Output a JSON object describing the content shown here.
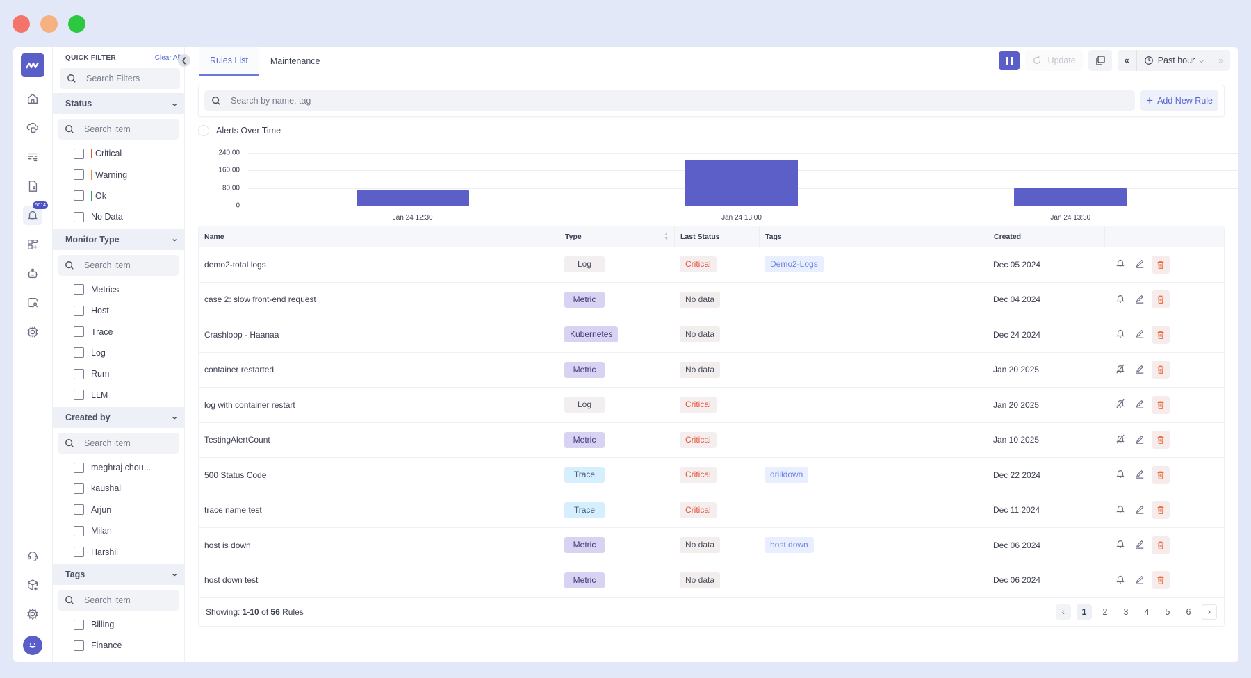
{
  "window": {
    "traffic_lights": [
      {
        "name": "close",
        "color": "#f4736a"
      },
      {
        "name": "minimize",
        "color": "#f5b17f"
      },
      {
        "name": "maximize",
        "color": "#2bc840"
      }
    ]
  },
  "rail": {
    "top_icons": [
      "home-icon",
      "cloud-infra-icon",
      "logs-icon",
      "document-icon",
      "alerts-bell-icon",
      "dashboard-add-icon",
      "bot-icon",
      "user-search-icon",
      "chip-settings-icon"
    ],
    "alerts_badge": "5014",
    "bottom_icons": [
      "headset-support-icon",
      "cube-add-icon",
      "settings-gear-icon",
      "user-avatar"
    ]
  },
  "filters": {
    "title": "QUICK FILTER",
    "clear_all": "Clear All",
    "search_placeholder": "Search Filters",
    "sections": {
      "status": {
        "title": "Status",
        "placeholder": "Search item",
        "items": [
          {
            "label": "Critical",
            "bar": "#e5533b"
          },
          {
            "label": "Warning",
            "bar": "#f08a3a"
          },
          {
            "label": "Ok",
            "bar": "#3aa35a"
          },
          {
            "label": "No Data",
            "bar": ""
          }
        ]
      },
      "monitor_type": {
        "title": "Monitor Type",
        "placeholder": "Search item",
        "items": [
          "Metrics",
          "Host",
          "Trace",
          "Log",
          "Rum",
          "LLM"
        ]
      },
      "created_by": {
        "title": "Created by",
        "placeholder": "Search item",
        "items": [
          "meghraj chou...",
          "kaushal",
          "Arjun",
          "Milan",
          "Harshil"
        ]
      },
      "tags": {
        "title": "Tags",
        "placeholder": "Search item",
        "items": [
          "Billing",
          "Finance"
        ]
      }
    }
  },
  "tabs": [
    {
      "label": "Rules List",
      "active": true
    },
    {
      "label": "Maintenance",
      "active": false
    }
  ],
  "toolbar": {
    "update_label": "Update",
    "time_range": "Past hour"
  },
  "search": {
    "placeholder": "Search by name, tag",
    "add_rule_label": "Add New Rule"
  },
  "chart_section": {
    "title": "Alerts Over Time"
  },
  "chart_data": {
    "type": "bar",
    "title": "Alerts Over Time",
    "categories": [
      "Jan 24 12:30",
      "Jan 24 13:00",
      "Jan 24 13:30"
    ],
    "values": [
      70,
      210,
      78
    ],
    "xlabel": "",
    "ylabel": "",
    "yticks": [
      "0",
      "80.00",
      "160.00",
      "240.00"
    ],
    "ylim": [
      0,
      240
    ],
    "grid": true,
    "color": "#5c5fc7"
  },
  "table": {
    "columns": [
      "Name",
      "Type",
      "Last Status",
      "Tags",
      "Created",
      ""
    ],
    "rows": [
      {
        "name": "demo2-total logs",
        "type": "Log",
        "status": "Critical",
        "tag": "Demo2-Logs",
        "created": "Dec 05 2024",
        "muted": false
      },
      {
        "name": "case 2: slow front-end request",
        "type": "Metric",
        "status": "No data",
        "tag": "",
        "created": "Dec 04 2024",
        "muted": false
      },
      {
        "name": "Crashloop - Haanaa",
        "type": "Kubernetes",
        "status": "No data",
        "tag": "",
        "created": "Dec 24 2024",
        "muted": false
      },
      {
        "name": "container restarted",
        "type": "Metric",
        "status": "No data",
        "tag": "",
        "created": "Jan 20 2025",
        "muted": true
      },
      {
        "name": "log with container restart",
        "type": "Log",
        "status": "Critical",
        "tag": "",
        "created": "Jan 20 2025",
        "muted": true
      },
      {
        "name": "TestingAlertCount",
        "type": "Metric",
        "status": "Critical",
        "tag": "",
        "created": "Jan 10 2025",
        "muted": true
      },
      {
        "name": "500 Status Code",
        "type": "Trace",
        "status": "Critical",
        "tag": "drilldown",
        "created": "Dec 22 2024",
        "muted": false
      },
      {
        "name": "trace name test",
        "type": "Trace",
        "status": "Critical",
        "tag": "",
        "created": "Dec 11 2024",
        "muted": false
      },
      {
        "name": "host is down",
        "type": "Metric",
        "status": "No data",
        "tag": "host down",
        "created": "Dec 06 2024",
        "muted": false
      },
      {
        "name": "host down test",
        "type": "Metric",
        "status": "No data",
        "tag": "",
        "created": "Dec 06 2024",
        "muted": false
      }
    ]
  },
  "footer": {
    "showing_prefix": "Showing: ",
    "range": "1-10",
    "of": " of ",
    "total": "56",
    "suffix": " Rules",
    "pages": [
      "1",
      "2",
      "3",
      "4",
      "5",
      "6"
    ],
    "current_page": "1"
  },
  "colors": {
    "accent": "#5a5ec9",
    "critical": "#e5533b",
    "link": "#5566cf"
  }
}
